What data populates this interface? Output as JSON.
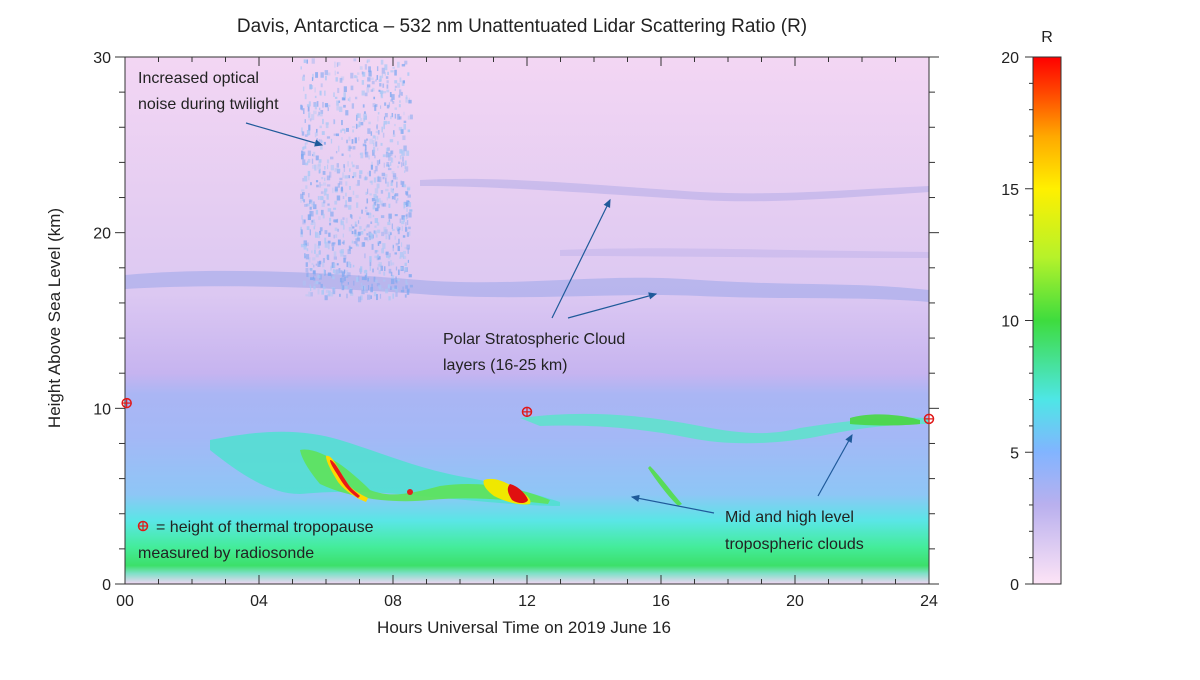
{
  "chart_data": {
    "type": "heatmap",
    "title": "Davis, Antarctica – 532 nm Unattentuated Lidar Scattering Ratio (R)",
    "xlabel": "Hours Universal Time on 2019 June 16",
    "ylabel": "Height Above Sea Level (km)",
    "xlim": [
      0,
      24
    ],
    "ylim": [
      0,
      30
    ],
    "x_ticks": [
      "00",
      "04",
      "08",
      "12",
      "16",
      "20",
      "24"
    ],
    "y_ticks": [
      "0",
      "10",
      "20",
      "30"
    ],
    "colorbar": {
      "label": "R",
      "range": [
        0,
        20
      ],
      "ticks": [
        "0",
        "5",
        "10",
        "15",
        "20"
      ],
      "colors": [
        "#f8dcf2",
        "#b9b0ee",
        "#7fb6ff",
        "#4de8e8",
        "#3edc3e",
        "#b8f22a",
        "#fff000",
        "#ffa800",
        "#ff4a00",
        "#ff0000"
      ]
    },
    "tropopause_points": [
      {
        "x": 0.05,
        "y": 10.3
      },
      {
        "x": 12.0,
        "y": 9.8
      },
      {
        "x": 24.0,
        "y": 9.4
      }
    ],
    "annotations": [
      {
        "text": "Increased optical",
        "text2": "noise during twilight"
      },
      {
        "text": "Polar Stratospheric Cloud",
        "text2": "layers (16-25 km)"
      },
      {
        "text": "Mid and high level",
        "text2": "tropospheric clouds"
      },
      {
        "text": "= height of thermal tropopause",
        "text2": "measured by radiosonde"
      }
    ]
  }
}
